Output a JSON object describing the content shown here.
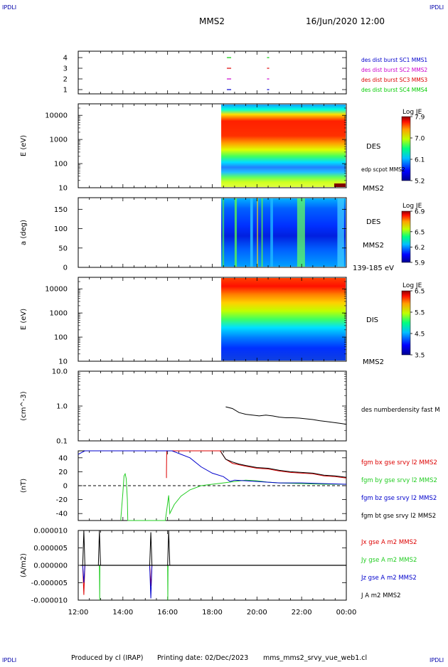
{
  "corner_marks": {
    "top_left": "IPDLI",
    "top_right": "IPDLI",
    "bottom_left": "IPDLI",
    "bottom_right": "IPDLI"
  },
  "header": {
    "title": "MMS2",
    "datetime": "16/Jun/2020 12:00"
  },
  "footer": {
    "producer": "Produced by cl (IRAP)",
    "printing_date": "Printing date: 02/Dec/2023",
    "script_name": "mms_mms2_srvy_vue_web1.cl"
  },
  "colors": {
    "mms1": "#0000cc",
    "mms2": "#cc00cc",
    "mms3": "#dd0000",
    "mms4": "#00cc00",
    "bx": "#dd0000",
    "by": "#22cc22",
    "bz": "#0000cc",
    "bt": "#000000",
    "corner": "#0000aa"
  },
  "chart_data": [
    {
      "id": "availability",
      "type": "scatter",
      "yticks": [
        "1",
        "2",
        "3",
        "4"
      ],
      "ylim": [
        0.6,
        4.6
      ],
      "legend": [
        {
          "label": "des dist burst SC1 MMS1",
          "color": "#0000cc"
        },
        {
          "label": "des dist burst SC2 MMS2",
          "color": "#cc00cc"
        },
        {
          "label": "des dist burst SC3 MMS3",
          "color": "#dd0000"
        },
        {
          "label": "des dist burst SC4 MMS4",
          "color": "#00cc00"
        }
      ],
      "series": [
        {
          "name": "des dist burst SC1 MMS1",
          "sc": 1,
          "times": [
            18.75,
            20.5
          ]
        },
        {
          "name": "des dist burst SC2 MMS2",
          "sc": 2,
          "times": [
            18.75,
            20.5
          ]
        },
        {
          "name": "des dist burst SC3 MMS3",
          "sc": 3,
          "times": [
            18.75,
            20.5
          ]
        },
        {
          "name": "des dist burst SC4 MMS4",
          "sc": 4,
          "times": [
            18.75,
            20.5
          ]
        }
      ]
    },
    {
      "id": "des-energy",
      "type": "heatmap",
      "ylabel": "E (eV)",
      "yscale": "log",
      "yticks": [
        "10",
        "100",
        "1000",
        "10000"
      ],
      "ylim": [
        10,
        30000
      ],
      "data_start_hour": 18.4,
      "label": "DES",
      "sublabel": "MMS2",
      "overlay_label": "edp scpot MMS2",
      "colorbar": {
        "title": "Log JE",
        "ticks": [
          "5.2",
          "6.1",
          "7.0",
          "7.9"
        ],
        "range": [
          5.2,
          7.9
        ]
      }
    },
    {
      "id": "des-pitch",
      "type": "heatmap",
      "ylabel": "a (deg)",
      "yticks": [
        "0",
        "50",
        "100",
        "150"
      ],
      "ylim": [
        0,
        180
      ],
      "data_start_hour": 18.4,
      "label": "DES",
      "sublabel": "MMS2",
      "range_label": "139-185 eV",
      "colorbar": {
        "title": "Log JE",
        "ticks": [
          "5.9",
          "6.2",
          "6.5",
          "6.9"
        ],
        "range": [
          5.9,
          6.9
        ]
      }
    },
    {
      "id": "dis-energy",
      "type": "heatmap",
      "ylabel": "E (eV)",
      "yscale": "log",
      "yticks": [
        "10",
        "100",
        "1000",
        "10000"
      ],
      "ylim": [
        10,
        30000
      ],
      "data_start_hour": 18.4,
      "label": "DIS",
      "sublabel": "MMS2",
      "colorbar": {
        "title": "Log JE",
        "ticks": [
          "3.5",
          "4.5",
          "5.5",
          "6.5"
        ],
        "range": [
          3.5,
          6.5
        ]
      }
    },
    {
      "id": "density",
      "type": "line",
      "ylabel": "(cm^-3)",
      "yscale": "log",
      "yticks": [
        "0.1",
        "1.0",
        "10.0"
      ],
      "ylim": [
        0.1,
        10
      ],
      "series": [
        {
          "name": "des numberdensity fast M",
          "color": "#000000",
          "x": [
            18.6,
            18.9,
            19.2,
            19.5,
            19.8,
            20.1,
            20.4,
            20.7,
            21.0,
            21.3,
            21.6,
            21.9,
            22.2,
            22.5,
            22.8,
            23.1,
            23.4,
            23.7,
            24.0
          ],
          "y": [
            0.95,
            0.85,
            0.65,
            0.58,
            0.55,
            0.52,
            0.55,
            0.52,
            0.48,
            0.46,
            0.46,
            0.45,
            0.43,
            0.41,
            0.38,
            0.36,
            0.34,
            0.32,
            0.3
          ]
        }
      ]
    },
    {
      "id": "magnetic-field",
      "type": "line",
      "ylabel": "(nT)",
      "yticks": [
        "-40",
        "-20",
        "0",
        "20",
        "40"
      ],
      "ylim": [
        -50,
        50
      ],
      "zero_line": true,
      "series": [
        {
          "name": "fgm bx gse srvy l2 MMS2",
          "color": "#dd0000",
          "x": [
            15.95,
            15.95,
            15.96,
            18.35,
            18.6,
            18.9,
            19.2,
            19.5,
            20.0,
            20.5,
            21.0,
            21.5,
            22.0,
            22.5,
            23.0,
            23.5,
            24.0
          ],
          "y": [
            11,
            20,
            55,
            52,
            38,
            32,
            30,
            28,
            25,
            24,
            21,
            19,
            18,
            17,
            14,
            13,
            11
          ]
        },
        {
          "name": "fgm by gse srvy l2 MMS2",
          "color": "#22cc22",
          "x": [
            13.9,
            14.0,
            14.05,
            14.1,
            14.15,
            14.2,
            14.22,
            15.9,
            16.05,
            16.1,
            16.3,
            16.6,
            17.0,
            17.5,
            18.0,
            18.5,
            19.0,
            19.5,
            20.0,
            20.5,
            21.0,
            22.0,
            23.0,
            24.0
          ],
          "y": [
            -50,
            -10,
            14,
            17,
            10,
            -20,
            -50,
            -50,
            -14,
            -40,
            -27,
            -15,
            -6,
            0,
            2,
            4,
            6,
            8,
            7,
            5,
            4,
            3,
            2,
            2
          ]
        },
        {
          "name": "fgm bz gse srvy l2 MMS2",
          "color": "#0000cc",
          "x": [
            12.0,
            12.3,
            12.55,
            16.2,
            17.0,
            17.5,
            18.0,
            18.5,
            18.8,
            19.0,
            19.5,
            20.0,
            20.5,
            21.0,
            22.0,
            23.0,
            24.0
          ],
          "y": [
            45,
            52,
            52,
            52,
            40,
            27,
            18,
            13,
            6,
            8,
            7,
            6,
            5,
            4,
            4,
            3,
            2
          ]
        },
        {
          "name": "fgm bt gse srvy l2 MMS2",
          "color": "#000000",
          "x": [
            18.4,
            18.6,
            18.9,
            19.2,
            19.5,
            20.0,
            20.5,
            21.0,
            21.5,
            22.0,
            22.5,
            23.0,
            23.5,
            24.0
          ],
          "y": [
            48,
            38,
            34,
            31,
            29,
            26,
            25,
            22,
            20,
            19,
            18,
            15,
            14,
            12
          ]
        }
      ]
    },
    {
      "id": "current-density",
      "type": "line",
      "ylabel": "(A/m2)",
      "yticks": [
        "-0.000010",
        "-0.000005",
        "0.000000",
        "0.000005",
        "0.000010"
      ],
      "ylim": [
        -1e-05,
        1e-05
      ],
      "series": [
        {
          "name": "Jx gse A m2 MMS2",
          "color": "#dd0000",
          "x": [
            12.2,
            12.25,
            12.3,
            15.2,
            15.25,
            15.3
          ],
          "y": [
            0,
            -8.5e-06,
            0,
            0,
            -6e-06,
            0
          ]
        },
        {
          "name": "Jy gse A m2 MMS2",
          "color": "#22cc22",
          "x": [
            12.95,
            12.96,
            12.97,
            16.0,
            16.01,
            16.02
          ],
          "y": [
            0,
            -1e-05,
            0,
            0,
            -1e-05,
            0
          ]
        },
        {
          "name": "Jz gse A m2 MMS2",
          "color": "#0000cc",
          "x": [
            12.2,
            12.25,
            12.3,
            15.2,
            15.25,
            15.3
          ],
          "y": [
            0,
            -5e-06,
            0,
            0,
            -9.5e-06,
            0
          ]
        },
        {
          "name": "J A m2 MMS2",
          "color": "#000000",
          "x": [
            12.2,
            12.25,
            12.3,
            12.9,
            12.95,
            13.0,
            15.2,
            15.25,
            15.3,
            16.0,
            16.05,
            16.1
          ],
          "y": [
            0,
            1e-05,
            0,
            0,
            1e-05,
            0,
            0,
            9.5e-06,
            0,
            0,
            1e-05,
            0
          ]
        }
      ]
    }
  ],
  "time_axis": {
    "xlim": [
      12,
      24
    ],
    "ticks": [
      "12:00",
      "14:00",
      "16:00",
      "18:00",
      "20:00",
      "22:00",
      "00:00"
    ]
  }
}
